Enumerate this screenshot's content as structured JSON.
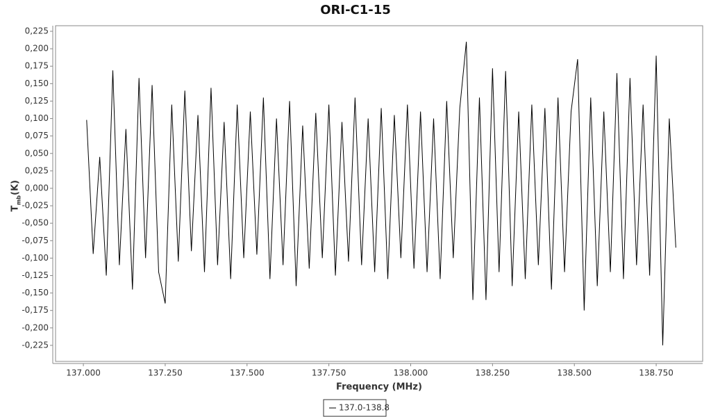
{
  "chart_data": {
    "type": "line",
    "title": "ORI-C1-15",
    "xlabel": "Frequency (MHz)",
    "ylabel": "T",
    "ylabel_sub": "mb",
    "ylabel_unit": "(K)",
    "x": [
      137.01,
      137.03,
      137.05,
      137.07,
      137.09,
      137.11,
      137.13,
      137.15,
      137.17,
      137.19,
      137.21,
      137.23,
      137.25,
      137.27,
      137.29,
      137.31,
      137.33,
      137.35,
      137.37,
      137.39,
      137.41,
      137.43,
      137.45,
      137.47,
      137.49,
      137.51,
      137.53,
      137.55,
      137.57,
      137.59,
      137.61,
      137.63,
      137.65,
      137.67,
      137.69,
      137.71,
      137.73,
      137.75,
      137.77,
      137.79,
      137.81,
      137.83,
      137.85,
      137.87,
      137.89,
      137.91,
      137.93,
      137.95,
      137.97,
      137.99,
      138.01,
      138.03,
      138.05,
      138.07,
      138.09,
      138.11,
      138.13,
      138.15,
      138.17,
      138.19,
      138.21,
      138.23,
      138.25,
      138.27,
      138.29,
      138.31,
      138.33,
      138.35,
      138.37,
      138.39,
      138.41,
      138.43,
      138.45,
      138.47,
      138.49,
      138.51,
      138.53,
      138.55,
      138.57,
      138.59,
      138.61,
      138.63,
      138.65,
      138.67,
      138.69,
      138.71,
      138.73,
      138.75,
      138.77,
      138.79,
      138.81
    ],
    "series": [
      {
        "name": "137.0-138.8",
        "color": "#000000",
        "values": [
          0.098,
          -0.094,
          0.045,
          -0.125,
          0.169,
          -0.11,
          0.085,
          -0.145,
          0.158,
          -0.1,
          0.148,
          -0.12,
          -0.165,
          0.12,
          -0.105,
          0.14,
          -0.09,
          0.105,
          -0.12,
          0.144,
          -0.11,
          0.095,
          -0.13,
          0.12,
          -0.1,
          0.11,
          -0.095,
          0.13,
          -0.13,
          0.1,
          -0.11,
          0.125,
          -0.14,
          0.09,
          -0.115,
          0.108,
          -0.1,
          0.12,
          -0.125,
          0.095,
          -0.105,
          0.13,
          -0.11,
          0.1,
          -0.12,
          0.115,
          -0.13,
          0.105,
          -0.1,
          0.12,
          -0.115,
          0.11,
          -0.12,
          0.1,
          -0.13,
          0.125,
          -0.1,
          0.115,
          0.21,
          -0.16,
          0.13,
          -0.16,
          0.172,
          -0.12,
          0.168,
          -0.14,
          0.11,
          -0.13,
          0.12,
          -0.11,
          0.115,
          -0.145,
          0.13,
          -0.12,
          0.11,
          0.185,
          -0.175,
          0.13,
          -0.14,
          0.11,
          -0.12,
          0.165,
          -0.13,
          0.158,
          -0.11,
          0.12,
          -0.125,
          0.19,
          -0.225,
          0.1,
          -0.085
        ]
      }
    ],
    "xlim": [
      136.915,
      138.892
    ],
    "ylim": [
      -0.248,
      0.233
    ],
    "xticks": [
      {
        "value": 137,
        "label": "137.000"
      },
      {
        "value": 137.25,
        "label": "137.250"
      },
      {
        "value": 137.5,
        "label": "137.500"
      },
      {
        "value": 137.75,
        "label": "137.750"
      },
      {
        "value": 138,
        "label": "138.000"
      },
      {
        "value": 138.25,
        "label": "138.250"
      },
      {
        "value": 138.5,
        "label": "138.500"
      },
      {
        "value": 138.75,
        "label": "138.750"
      }
    ],
    "yticks": [
      {
        "value": -0.225,
        "label": "-0,225"
      },
      {
        "value": -0.2,
        "label": "-0,200"
      },
      {
        "value": -0.175,
        "label": "-0,175"
      },
      {
        "value": -0.15,
        "label": "-0,150"
      },
      {
        "value": -0.125,
        "label": "-0,125"
      },
      {
        "value": -0.1,
        "label": "-0,100"
      },
      {
        "value": -0.075,
        "label": "-0,075"
      },
      {
        "value": -0.05,
        "label": "-0,050"
      },
      {
        "value": -0.025,
        "label": "-0,025"
      },
      {
        "value": 0,
        "label": "0,000"
      },
      {
        "value": 0.025,
        "label": "0,025"
      },
      {
        "value": 0.05,
        "label": "0,050"
      },
      {
        "value": 0.075,
        "label": "0,075"
      },
      {
        "value": 0.1,
        "label": "0,100"
      },
      {
        "value": 0.125,
        "label": "0,125"
      },
      {
        "value": 0.15,
        "label": "0,150"
      },
      {
        "value": 0.175,
        "label": "0,175"
      },
      {
        "value": 0.2,
        "label": "0,200"
      },
      {
        "value": 0.225,
        "label": "0,225"
      }
    ],
    "legend": "bottom"
  }
}
